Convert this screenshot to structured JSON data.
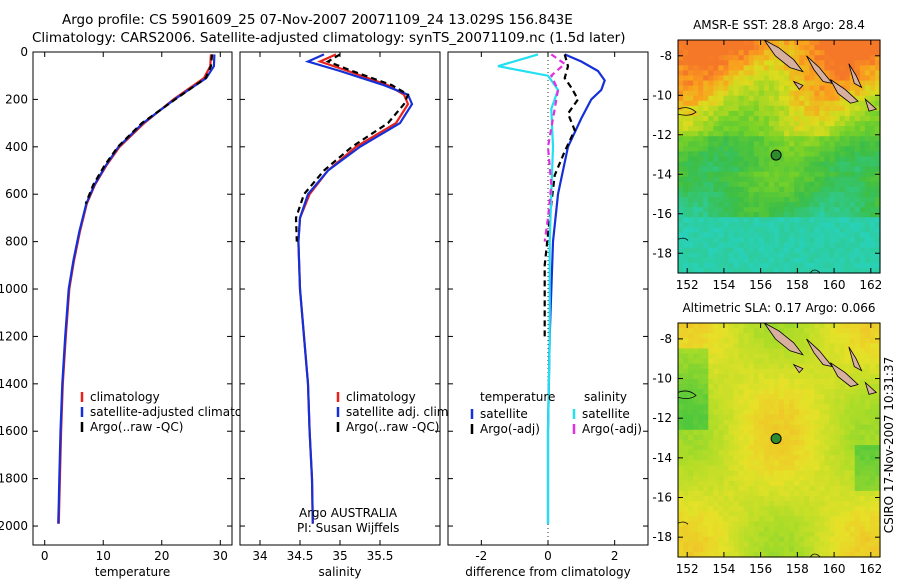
{
  "header": {
    "line1": "Argo profile: CS 5901609_25 07-Nov-2007 20071109_24 13.029S 156.843E",
    "line2": "Climatology: CARS2006. Satellite-adjusted climatology: synTS_20071109.nc (1.5d later)"
  },
  "credit": "Argo AUSTRALIA",
  "pi": "PI: Susan Wijffels",
  "stamp": "CSIRO 17-Nov-2007 10:31:37",
  "colors": {
    "clim": "#e8211c",
    "sat": "#1530d8",
    "argo": "#000000",
    "sal_sat": "#22e0f0",
    "sal_argo": "#e030e0",
    "map_circle": "#2e8b2e"
  },
  "chart_data": [
    {
      "type": "line",
      "xlabel": "temperature",
      "ylim": [
        2080,
        0
      ],
      "xlim": [
        -2,
        32
      ],
      "xticks": [
        0,
        10,
        20,
        30
      ],
      "yticks": [
        0,
        200,
        400,
        600,
        800,
        1000,
        1200,
        1400,
        1600,
        1800,
        2000
      ],
      "legend": [
        "climatology",
        "satellite-adjusted climatology",
        "Argo(..raw -QC)"
      ],
      "series": [
        {
          "name": "climatology",
          "style": "solid",
          "color": "clim",
          "x": [
            28.4,
            28.3,
            27.2,
            22.0,
            17.0,
            12.8,
            10.5,
            8.6,
            7.2,
            6.0,
            5.0,
            4.2,
            3.6,
            3.1,
            2.8,
            2.6,
            2.5,
            2.4
          ],
          "y": [
            10,
            60,
            110,
            200,
            300,
            400,
            480,
            560,
            640,
            760,
            880,
            1000,
            1200,
            1400,
            1600,
            1800,
            1900,
            1990
          ]
        },
        {
          "name": "satellite-adjusted climatology",
          "style": "solid",
          "color": "sat",
          "x": [
            29.0,
            28.9,
            27.6,
            22.2,
            16.8,
            12.6,
            10.4,
            8.5,
            7.1,
            5.9,
            4.9,
            4.1,
            3.5,
            3.0,
            2.7,
            2.5,
            2.4,
            2.3
          ],
          "y": [
            10,
            60,
            110,
            200,
            300,
            400,
            480,
            560,
            640,
            760,
            880,
            1000,
            1200,
            1400,
            1600,
            1800,
            1900,
            1990
          ]
        },
        {
          "name": "Argo(..raw -QC)",
          "style": "dash",
          "color": "argo",
          "x": [
            28.6,
            28.4,
            27.5,
            22.3,
            16.6,
            12.5,
            10.2,
            8.3,
            7.0
          ],
          "y": [
            10,
            60,
            110,
            200,
            300,
            400,
            480,
            560,
            640
          ]
        }
      ]
    },
    {
      "type": "line",
      "xlabel": "salinity",
      "ylim": [
        2080,
        0
      ],
      "xlim": [
        33.75,
        36.25
      ],
      "xticks": [
        34,
        34.5,
        35,
        35.5
      ],
      "legend": [
        "climatology",
        "satellite adj. clim.",
        "Argo(..raw -QC)"
      ],
      "series": [
        {
          "name": "climatology",
          "style": "solid",
          "color": "clim",
          "x": [
            34.95,
            34.75,
            35.1,
            35.6,
            35.8,
            35.85,
            35.7,
            35.2,
            34.85,
            34.62,
            34.5,
            34.48,
            34.5,
            34.55,
            34.6,
            34.62,
            34.65,
            34.66
          ],
          "y": [
            10,
            40,
            80,
            140,
            180,
            220,
            300,
            400,
            500,
            600,
            700,
            800,
            1000,
            1200,
            1400,
            1600,
            1800,
            1990
          ]
        },
        {
          "name": "satellite adj. clim.",
          "style": "solid",
          "color": "sat",
          "x": [
            34.8,
            34.6,
            35.0,
            35.55,
            35.85,
            35.9,
            35.75,
            35.25,
            34.85,
            34.6,
            34.5,
            34.48,
            34.5,
            34.55,
            34.6,
            34.62,
            34.65,
            34.66
          ],
          "y": [
            10,
            40,
            80,
            140,
            180,
            220,
            300,
            400,
            500,
            600,
            700,
            800,
            1000,
            1200,
            1400,
            1600,
            1800,
            1990
          ]
        },
        {
          "name": "Argo(..raw -QC)",
          "style": "dash",
          "color": "argo",
          "x": [
            35.0,
            34.85,
            35.15,
            35.65,
            35.85,
            35.8,
            35.6,
            35.15,
            34.8,
            34.55,
            34.45,
            34.46
          ],
          "y": [
            10,
            40,
            80,
            140,
            180,
            220,
            300,
            400,
            500,
            600,
            700,
            800
          ]
        }
      ]
    },
    {
      "type": "line",
      "xlabel": "difference from climatology",
      "ylim": [
        2080,
        0
      ],
      "xlim": [
        -3,
        3
      ],
      "xticks": [
        -2,
        0,
        2
      ],
      "legend_left_title": "temperature",
      "legend_right_title": "salinity",
      "legend": [
        "satellite",
        "Argo(-adj)",
        "satellite",
        "Argo(-adj)"
      ],
      "series": [
        {
          "name": "satellite",
          "style": "solid",
          "color": "sat",
          "x": [
            0.5,
            1.0,
            1.5,
            1.7,
            1.6,
            1.3,
            1.0,
            0.6,
            0.3,
            0.15,
            0.05,
            0.0,
            0.0
          ],
          "y": [
            10,
            40,
            80,
            120,
            160,
            200,
            280,
            400,
            600,
            800,
            1200,
            1600,
            1990
          ]
        },
        {
          "name": "Argo(-adj)",
          "style": "dash",
          "color": "argo",
          "x": [
            0.5,
            0.6,
            0.5,
            0.7,
            0.9,
            0.6,
            0.8,
            0.5,
            0.2,
            0.1,
            -0.1,
            -0.1
          ],
          "y": [
            10,
            60,
            110,
            150,
            200,
            260,
            330,
            420,
            520,
            640,
            900,
            1200
          ]
        },
        {
          "name": "satellite",
          "style": "solid",
          "color": "sal_sat",
          "x": [
            -0.3,
            -1.5,
            0.0,
            0.3,
            0.1,
            0.15,
            0.1,
            0.05,
            0.05,
            0.0,
            0.0
          ],
          "y": [
            10,
            60,
            100,
            160,
            240,
            400,
            600,
            800,
            1200,
            1600,
            1990
          ]
        },
        {
          "name": "Argo(-adj)",
          "style": "dash",
          "color": "sal_argo",
          "x": [
            0.1,
            0.5,
            0.1,
            0.3,
            0.2,
            0.0,
            0.1,
            0.0,
            -0.1
          ],
          "y": [
            10,
            50,
            100,
            160,
            240,
            400,
            560,
            700,
            800
          ]
        }
      ]
    },
    {
      "type": "heatmap",
      "title": "AMSR-E SST: 28.8 Argo: 28.4",
      "xlim": [
        151.5,
        162.5
      ],
      "ylim": [
        -19.0,
        -7.2
      ],
      "xticks": [
        152,
        154,
        156,
        158,
        160,
        162
      ],
      "yticks": [
        -8,
        -10,
        -12,
        -14,
        -16,
        -18
      ],
      "marker": {
        "x": 156.843,
        "y": -13.029
      }
    },
    {
      "type": "heatmap",
      "title": "Altimetric SLA: 0.17 Argo: 0.066",
      "xlim": [
        151.5,
        162.5
      ],
      "ylim": [
        -19.0,
        -7.2
      ],
      "xticks": [
        152,
        154,
        156,
        158,
        160,
        162
      ],
      "yticks": [
        -8,
        -10,
        -12,
        -14,
        -16,
        -18
      ],
      "marker": {
        "x": 156.843,
        "y": -13.029
      }
    }
  ]
}
